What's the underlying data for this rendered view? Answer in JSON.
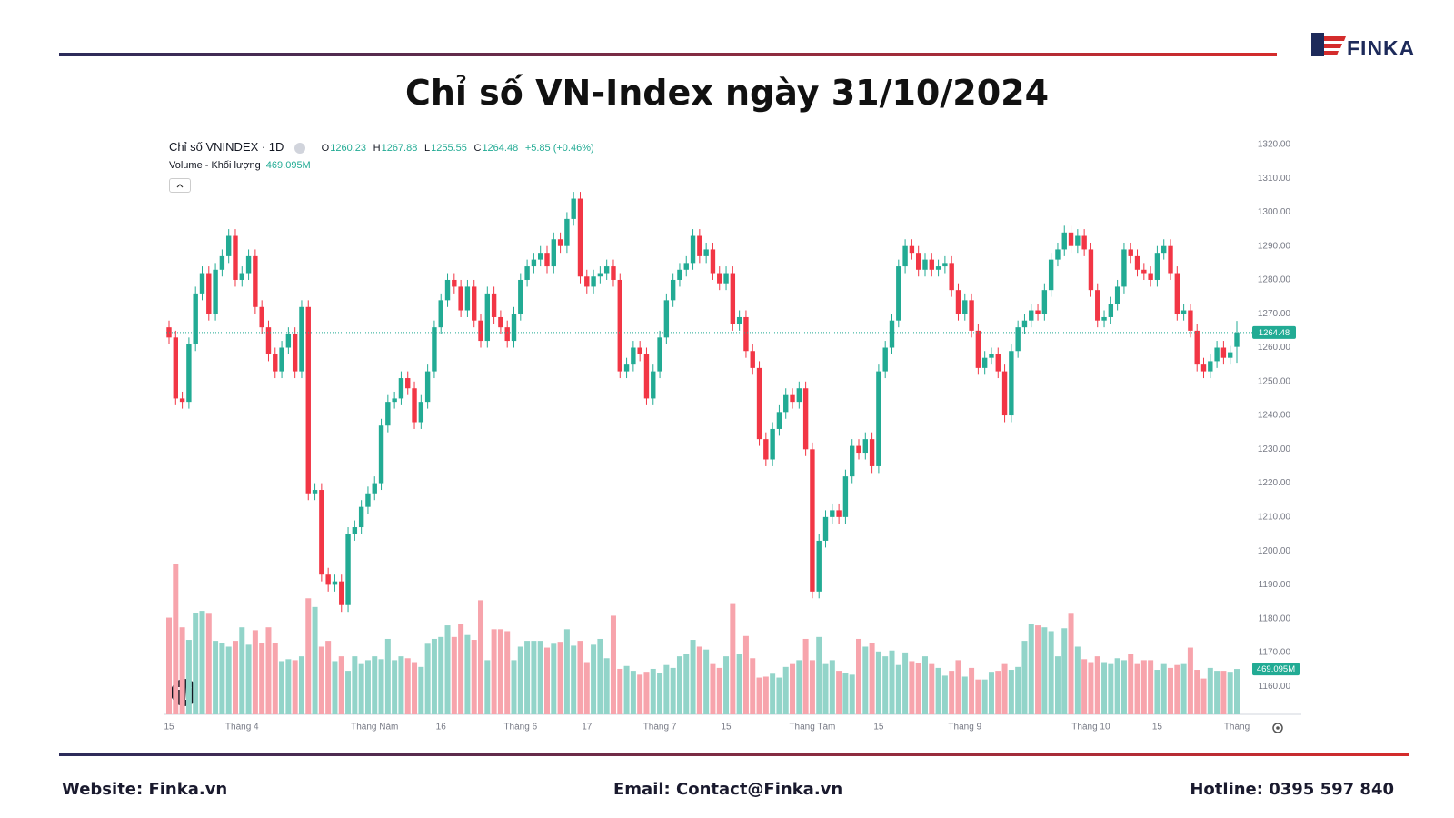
{
  "header": {
    "title": "Chỉ số VN-Index ngày 31/10/2024",
    "logo": "FINKA"
  },
  "footer": {
    "website": "Website: Finka.vn",
    "email": "Email: Contact@Finka.vn",
    "hotline": "Hotline: 0395 597 840"
  },
  "chart_data": {
    "type": "candlestick",
    "symbol": "Chỉ số VNINDEX · 1D",
    "ohlc_labels": [
      "O",
      "H",
      "L",
      "C"
    ],
    "change": "+5.85 (+0.46%)",
    "volume_title": "Volume - Khối lượng",
    "volume_value_label": "469.095M",
    "up_color": "#22ab94",
    "down_color": "#f23645",
    "volume_up_color": "#92d4c9",
    "volume_down_color": "#f7a4ac",
    "grid": false,
    "ylim": [
      1152,
      1324
    ],
    "yticks": [
      {
        "value": 1320,
        "label": "1320.00"
      },
      {
        "value": 1310,
        "label": "1310.00"
      },
      {
        "value": 1300,
        "label": "1300.00"
      },
      {
        "value": 1290,
        "label": "1290.00"
      },
      {
        "value": 1280,
        "label": "1280.00"
      },
      {
        "value": 1270,
        "label": "1270.00"
      },
      {
        "value": 1260,
        "label": "1260.00"
      },
      {
        "value": 1250,
        "label": "1250.00"
      },
      {
        "value": 1240,
        "label": "1240.00"
      },
      {
        "value": 1230,
        "label": "1230.00"
      },
      {
        "value": 1220,
        "label": "1220.00"
      },
      {
        "value": 1210,
        "label": "1210.00"
      },
      {
        "value": 1200,
        "label": "1200.00"
      },
      {
        "value": 1190,
        "label": "1190.00"
      },
      {
        "value": 1180,
        "label": "1180.00"
      },
      {
        "value": 1170,
        "label": "1170.00"
      },
      {
        "value": 1160,
        "label": "1160.00"
      }
    ],
    "categories": [
      "15",
      null,
      null,
      null,
      null,
      null,
      null,
      null,
      null,
      null,
      null,
      "Tháng 4",
      null,
      null,
      null,
      null,
      null,
      null,
      null,
      null,
      null,
      null,
      null,
      null,
      null,
      null,
      null,
      null,
      null,
      null,
      null,
      "Tháng Năm",
      null,
      null,
      null,
      null,
      null,
      null,
      null,
      null,
      null,
      "16",
      null,
      null,
      null,
      null,
      null,
      null,
      null,
      null,
      null,
      null,
      null,
      "Tháng 6",
      null,
      null,
      null,
      null,
      null,
      null,
      null,
      null,
      null,
      "17",
      null,
      null,
      null,
      null,
      null,
      null,
      null,
      null,
      null,
      null,
      "Tháng 7",
      null,
      null,
      null,
      null,
      null,
      null,
      null,
      null,
      null,
      "15",
      null,
      null,
      null,
      null,
      null,
      null,
      null,
      null,
      null,
      null,
      null,
      null,
      "Tháng Tám",
      null,
      null,
      null,
      null,
      null,
      null,
      null,
      null,
      null,
      "15",
      null,
      null,
      null,
      null,
      null,
      null,
      null,
      null,
      null,
      null,
      null,
      null,
      "Tháng 9",
      null,
      null,
      null,
      null,
      null,
      null,
      null,
      null,
      null,
      null,
      null,
      null,
      null,
      null,
      null,
      null,
      null,
      null,
      "Tháng 10",
      null,
      null,
      null,
      null,
      null,
      null,
      null,
      null,
      null,
      "15",
      null,
      null,
      null,
      null,
      null,
      null,
      null,
      null,
      null,
      null,
      null,
      "Tháng"
    ],
    "ohlc": [
      [
        1266,
        1268,
        1261,
        1263
      ],
      [
        1263,
        1265,
        1243,
        1245
      ],
      [
        1245,
        1247,
        1242,
        1244
      ],
      [
        1244,
        1263,
        1242,
        1261
      ],
      [
        1261,
        1278,
        1259,
        1276
      ],
      [
        1276,
        1284,
        1274,
        1282
      ],
      [
        1282,
        1284,
        1268,
        1270
      ],
      [
        1270,
        1285,
        1268,
        1283
      ],
      [
        1283,
        1289,
        1281,
        1287
      ],
      [
        1287,
        1295,
        1285,
        1293
      ],
      [
        1293,
        1295,
        1278,
        1280
      ],
      [
        1280,
        1284,
        1278,
        1282
      ],
      [
        1282,
        1289,
        1280,
        1287
      ],
      [
        1287,
        1289,
        1270,
        1272
      ],
      [
        1272,
        1274,
        1264,
        1266
      ],
      [
        1266,
        1268,
        1256,
        1258
      ],
      [
        1258,
        1260,
        1251,
        1253
      ],
      [
        1253,
        1262,
        1251,
        1260
      ],
      [
        1260,
        1266,
        1258,
        1264
      ],
      [
        1264,
        1266,
        1251,
        1253
      ],
      [
        1253,
        1274,
        1251,
        1272
      ],
      [
        1272,
        1274,
        1215,
        1217
      ],
      [
        1217,
        1220,
        1215,
        1218
      ],
      [
        1218,
        1220,
        1191,
        1193
      ],
      [
        1193,
        1195,
        1188,
        1190
      ],
      [
        1190,
        1193,
        1188,
        1191
      ],
      [
        1191,
        1193,
        1182,
        1184
      ],
      [
        1184,
        1207,
        1182,
        1205
      ],
      [
        1205,
        1209,
        1203,
        1207
      ],
      [
        1207,
        1215,
        1205,
        1213
      ],
      [
        1213,
        1219,
        1211,
        1217
      ],
      [
        1217,
        1222,
        1215,
        1220
      ],
      [
        1220,
        1239,
        1218,
        1237
      ],
      [
        1237,
        1246,
        1235,
        1244
      ],
      [
        1244,
        1247,
        1242,
        1245
      ],
      [
        1245,
        1253,
        1243,
        1251
      ],
      [
        1251,
        1253,
        1246,
        1248
      ],
      [
        1248,
        1250,
        1236,
        1238
      ],
      [
        1238,
        1246,
        1236,
        1244
      ],
      [
        1244,
        1255,
        1242,
        1253
      ],
      [
        1253,
        1268,
        1251,
        1266
      ],
      [
        1266,
        1276,
        1264,
        1274
      ],
      [
        1274,
        1282,
        1272,
        1280
      ],
      [
        1280,
        1282,
        1276,
        1278
      ],
      [
        1278,
        1280,
        1269,
        1271
      ],
      [
        1271,
        1280,
        1269,
        1278
      ],
      [
        1278,
        1280,
        1266,
        1268
      ],
      [
        1268,
        1270,
        1260,
        1262
      ],
      [
        1262,
        1278,
        1260,
        1276
      ],
      [
        1276,
        1278,
        1267,
        1269
      ],
      [
        1269,
        1271,
        1264,
        1266
      ],
      [
        1266,
        1268,
        1260,
        1262
      ],
      [
        1262,
        1272,
        1260,
        1270
      ],
      [
        1270,
        1282,
        1268,
        1280
      ],
      [
        1280,
        1286,
        1278,
        1284
      ],
      [
        1284,
        1288,
        1282,
        1286
      ],
      [
        1286,
        1290,
        1284,
        1288
      ],
      [
        1288,
        1290,
        1282,
        1284
      ],
      [
        1284,
        1294,
        1282,
        1292
      ],
      [
        1292,
        1294,
        1288,
        1290
      ],
      [
        1290,
        1300,
        1288,
        1298
      ],
      [
        1298,
        1306,
        1296,
        1304
      ],
      [
        1304,
        1306,
        1279,
        1281
      ],
      [
        1281,
        1283,
        1276,
        1278
      ],
      [
        1278,
        1283,
        1276,
        1281
      ],
      [
        1281,
        1284,
        1279,
        1282
      ],
      [
        1282,
        1286,
        1280,
        1284
      ],
      [
        1284,
        1286,
        1278,
        1280
      ],
      [
        1280,
        1282,
        1251,
        1253
      ],
      [
        1253,
        1257,
        1251,
        1255
      ],
      [
        1255,
        1262,
        1253,
        1260
      ],
      [
        1260,
        1262,
        1256,
        1258
      ],
      [
        1258,
        1260,
        1243,
        1245
      ],
      [
        1245,
        1255,
        1243,
        1253
      ],
      [
        1253,
        1265,
        1251,
        1263
      ],
      [
        1263,
        1276,
        1261,
        1274
      ],
      [
        1274,
        1282,
        1272,
        1280
      ],
      [
        1280,
        1285,
        1278,
        1283
      ],
      [
        1283,
        1287,
        1281,
        1285
      ],
      [
        1285,
        1295,
        1283,
        1293
      ],
      [
        1293,
        1295,
        1285,
        1287
      ],
      [
        1287,
        1291,
        1285,
        1289
      ],
      [
        1289,
        1291,
        1280,
        1282
      ],
      [
        1282,
        1284,
        1277,
        1279
      ],
      [
        1279,
        1284,
        1277,
        1282
      ],
      [
        1282,
        1284,
        1265,
        1267
      ],
      [
        1267,
        1271,
        1265,
        1269
      ],
      [
        1269,
        1271,
        1257,
        1259
      ],
      [
        1259,
        1261,
        1252,
        1254
      ],
      [
        1254,
        1256,
        1231,
        1233
      ],
      [
        1233,
        1235,
        1225,
        1227
      ],
      [
        1227,
        1238,
        1225,
        1236
      ],
      [
        1236,
        1243,
        1234,
        1241
      ],
      [
        1241,
        1248,
        1239,
        1246
      ],
      [
        1246,
        1248,
        1242,
        1244
      ],
      [
        1244,
        1250,
        1242,
        1248
      ],
      [
        1248,
        1250,
        1228,
        1230
      ],
      [
        1230,
        1232,
        1186,
        1188
      ],
      [
        1188,
        1205,
        1186,
        1203
      ],
      [
        1203,
        1212,
        1201,
        1210
      ],
      [
        1210,
        1214,
        1208,
        1212
      ],
      [
        1212,
        1214,
        1208,
        1210
      ],
      [
        1210,
        1224,
        1208,
        1222
      ],
      [
        1222,
        1233,
        1220,
        1231
      ],
      [
        1231,
        1233,
        1227,
        1229
      ],
      [
        1229,
        1235,
        1227,
        1233
      ],
      [
        1233,
        1235,
        1223,
        1225
      ],
      [
        1225,
        1255,
        1223,
        1253
      ],
      [
        1253,
        1262,
        1251,
        1260
      ],
      [
        1260,
        1270,
        1258,
        1268
      ],
      [
        1268,
        1286,
        1266,
        1284
      ],
      [
        1284,
        1292,
        1282,
        1290
      ],
      [
        1290,
        1292,
        1286,
        1288
      ],
      [
        1288,
        1290,
        1281,
        1283
      ],
      [
        1283,
        1288,
        1281,
        1286
      ],
      [
        1286,
        1288,
        1281,
        1283
      ],
      [
        1283,
        1286,
        1281,
        1284
      ],
      [
        1284,
        1287,
        1282,
        1285
      ],
      [
        1285,
        1287,
        1275,
        1277
      ],
      [
        1277,
        1279,
        1268,
        1270
      ],
      [
        1270,
        1276,
        1268,
        1274
      ],
      [
        1274,
        1276,
        1263,
        1265
      ],
      [
        1265,
        1267,
        1252,
        1254
      ],
      [
        1254,
        1259,
        1252,
        1257
      ],
      [
        1257,
        1260,
        1255,
        1258
      ],
      [
        1258,
        1260,
        1251,
        1253
      ],
      [
        1253,
        1255,
        1238,
        1240
      ],
      [
        1240,
        1261,
        1238,
        1259
      ],
      [
        1259,
        1268,
        1257,
        1266
      ],
      [
        1266,
        1270,
        1264,
        1268
      ],
      [
        1268,
        1273,
        1266,
        1271
      ],
      [
        1271,
        1273,
        1268,
        1270
      ],
      [
        1270,
        1279,
        1268,
        1277
      ],
      [
        1277,
        1288,
        1275,
        1286
      ],
      [
        1286,
        1291,
        1284,
        1289
      ],
      [
        1289,
        1296,
        1287,
        1294
      ],
      [
        1294,
        1296,
        1288,
        1290
      ],
      [
        1290,
        1295,
        1288,
        1293
      ],
      [
        1293,
        1295,
        1287,
        1289
      ],
      [
        1289,
        1291,
        1275,
        1277
      ],
      [
        1277,
        1279,
        1266,
        1268
      ],
      [
        1268,
        1271,
        1266,
        1269
      ],
      [
        1269,
        1275,
        1267,
        1273
      ],
      [
        1273,
        1280,
        1271,
        1278
      ],
      [
        1278,
        1291,
        1276,
        1289
      ],
      [
        1289,
        1291,
        1285,
        1287
      ],
      [
        1287,
        1289,
        1281,
        1283
      ],
      [
        1283,
        1285,
        1280,
        1282
      ],
      [
        1282,
        1284,
        1278,
        1280
      ],
      [
        1280,
        1290,
        1278,
        1288
      ],
      [
        1288,
        1292,
        1286,
        1290
      ],
      [
        1290,
        1292,
        1280,
        1282
      ],
      [
        1282,
        1284,
        1268,
        1270
      ],
      [
        1270,
        1273,
        1268,
        1271
      ],
      [
        1271,
        1273,
        1263,
        1265
      ],
      [
        1265,
        1267,
        1253,
        1255
      ],
      [
        1255,
        1257,
        1251,
        1253
      ],
      [
        1253,
        1258,
        1251,
        1256
      ],
      [
        1256,
        1262,
        1254,
        1260
      ],
      [
        1260,
        1262,
        1255,
        1257
      ],
      [
        1257,
        1260.5,
        1255,
        1258.63
      ],
      [
        1260.23,
        1267.88,
        1255.55,
        1264.48
      ]
    ],
    "volume": [
      1000,
      1550,
      900,
      770,
      1050,
      1070,
      1040,
      760,
      740,
      700,
      760,
      900,
      720,
      870,
      740,
      900,
      740,
      550,
      570,
      560,
      600,
      1200,
      1110,
      700,
      760,
      550,
      600,
      450,
      600,
      520,
      560,
      600,
      570,
      780,
      560,
      600,
      580,
      540,
      490,
      730,
      780,
      800,
      920,
      800,
      930,
      820,
      770,
      1180,
      560,
      880,
      880,
      860,
      560,
      700,
      760,
      760,
      760,
      690,
      730,
      750,
      880,
      710,
      760,
      540,
      720,
      780,
      580,
      1020,
      470,
      500,
      450,
      410,
      440,
      470,
      430,
      510,
      480,
      600,
      620,
      770,
      700,
      670,
      520,
      480,
      600,
      1150,
      620,
      810,
      580,
      380,
      390,
      420,
      380,
      490,
      520,
      560,
      780,
      560,
      800,
      520,
      560,
      450,
      430,
      410,
      780,
      700,
      740,
      650,
      600,
      660,
      510,
      640,
      550,
      530,
      600,
      520,
      480,
      400,
      450,
      560,
      390,
      480,
      360,
      360,
      440,
      450,
      520,
      460,
      490,
      760,
      930,
      920,
      900,
      860,
      600,
      890,
      1040,
      700,
      570,
      540,
      600,
      540,
      520,
      580,
      560,
      620,
      520,
      560,
      560,
      460,
      520,
      480,
      510,
      520,
      690,
      460,
      370,
      480,
      450,
      450,
      440,
      469.095
    ]
  }
}
